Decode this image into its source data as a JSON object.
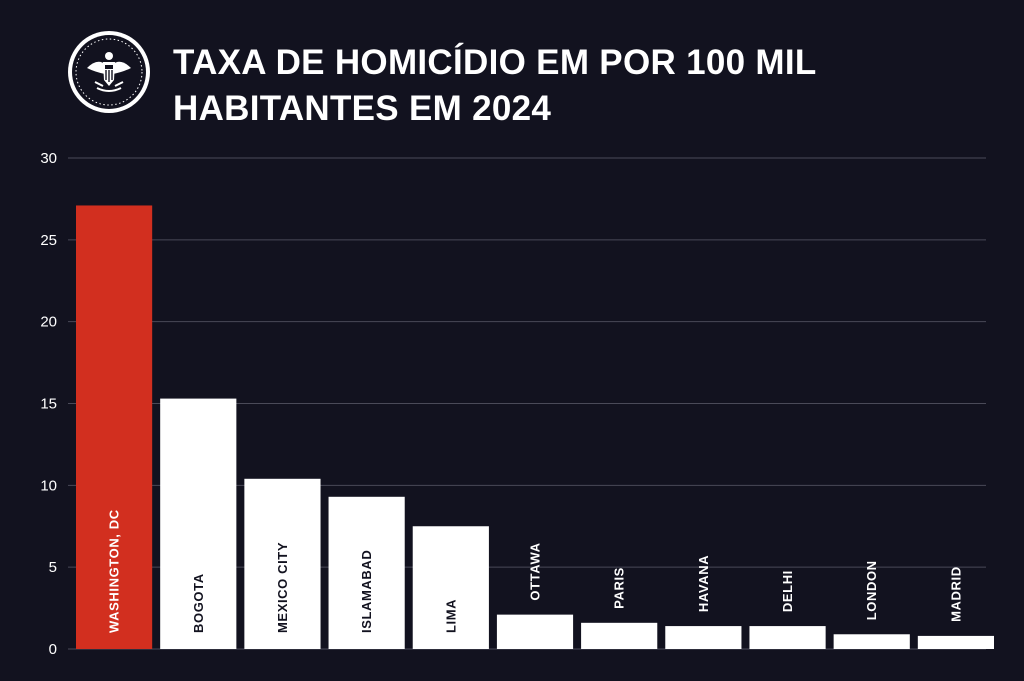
{
  "header": {
    "title_line1": "TAXA DE HOMICÍDIO EM POR 100 MIL",
    "title_line2": "HABITANTES EM 2024",
    "seal_icon": "presidential-seal-icon"
  },
  "colors": {
    "background": "#12121f",
    "highlight_bar": "#d22f1f",
    "bar": "#ffffff",
    "grid": "#4a4a58",
    "tick_label": "#ffffff",
    "bar_label_on_white": "#12121f",
    "bar_label_on_highlight": "#ffffff",
    "bar_label_on_background": "#ffffff"
  },
  "chart_data": {
    "type": "bar",
    "title": "TAXA DE HOMICÍDIO EM POR 100 MIL HABITANTES EM 2024",
    "xlabel": "",
    "ylabel": "",
    "ylim": [
      0,
      30
    ],
    "yticks": [
      0,
      5,
      10,
      15,
      20,
      25,
      30
    ],
    "grid": true,
    "legend": "none",
    "label_orientation": "vertical",
    "highlight_category": "WASHINGTON, DC",
    "categories": [
      "WASHINGTON, DC",
      "BOGOTA",
      "MEXICO CITY",
      "ISLAMABAD",
      "LIMA",
      "OTTAWA",
      "PARIS",
      "HAVANA",
      "DELHI",
      "LONDON",
      "MADRID"
    ],
    "values": [
      27.1,
      15.3,
      10.4,
      9.3,
      7.5,
      2.1,
      1.6,
      1.4,
      1.4,
      0.9,
      0.8
    ]
  }
}
